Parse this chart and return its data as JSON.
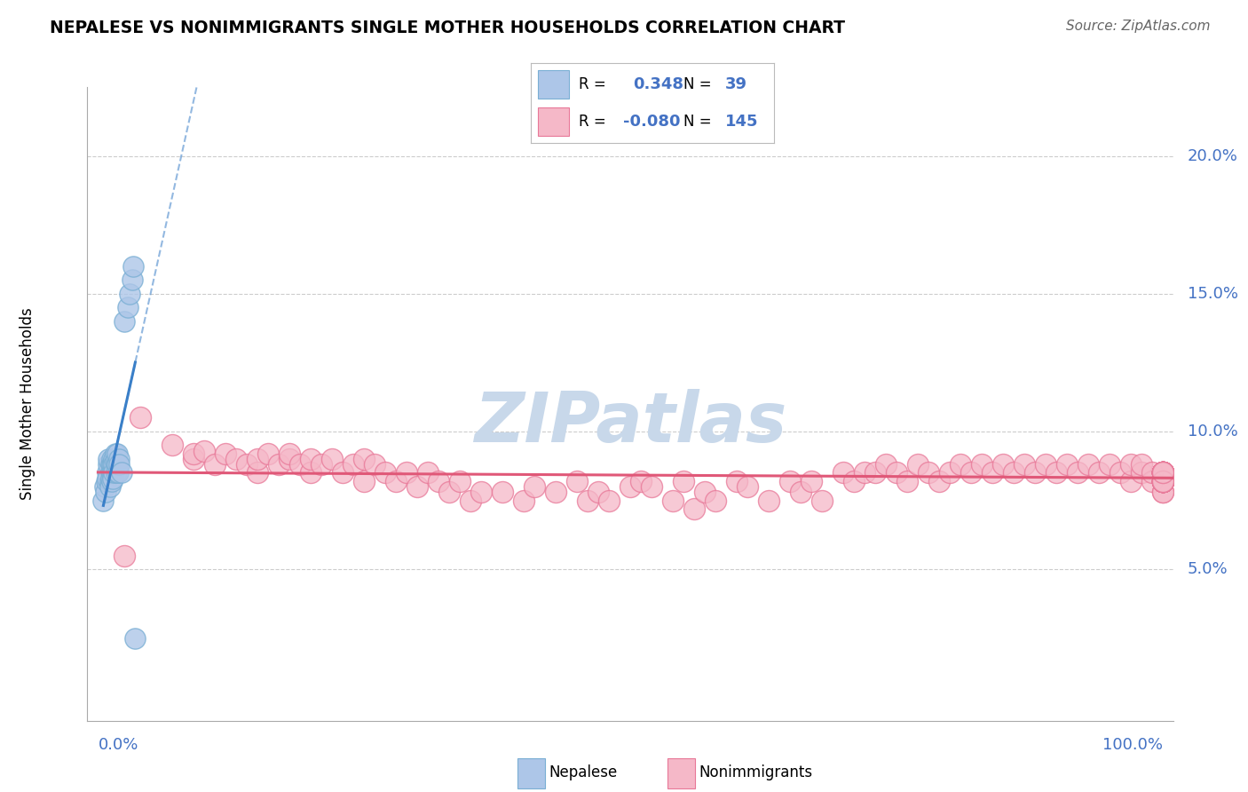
{
  "title": "NEPALESE VS NONIMMIGRANTS SINGLE MOTHER HOUSEHOLDS CORRELATION CHART",
  "source": "Source: ZipAtlas.com",
  "ylabel": "Single Mother Households",
  "legend_nepalese_R": "0.348",
  "legend_nepalese_N": "39",
  "legend_nonimmigrants_R": "-0.080",
  "legend_nonimmigrants_N": "145",
  "color_nepalese_fill": "#adc6e8",
  "color_nepalese_edge": "#7aafd4",
  "color_nonimmigrants_fill": "#f5b8c8",
  "color_nonimmigrants_edge": "#e87898",
  "color_nepalese_line": "#3a7fc8",
  "color_nonimmigrants_line": "#e05878",
  "color_axis_label": "#4472c4",
  "color_grid": "#cccccc",
  "watermark_text": "ZIPatlas",
  "watermark_color": "#c8d8ea",
  "xlim": [
    0.0,
    1.0
  ],
  "ylim": [
    0.0,
    0.22
  ],
  "yticks": [
    0.05,
    0.1,
    0.15,
    0.2
  ],
  "ytick_labels": [
    "5.0%",
    "10.0%",
    "15.0%",
    "20.0%"
  ],
  "nepalese_x": [
    0.005,
    0.006,
    0.007,
    0.008,
    0.009,
    0.009,
    0.01,
    0.01,
    0.011,
    0.011,
    0.012,
    0.012,
    0.012,
    0.013,
    0.013,
    0.013,
    0.013,
    0.014,
    0.014,
    0.014,
    0.015,
    0.015,
    0.015,
    0.016,
    0.016,
    0.017,
    0.017,
    0.018,
    0.018,
    0.019,
    0.02,
    0.02,
    0.022,
    0.025,
    0.028,
    0.03,
    0.032,
    0.033,
    0.035
  ],
  "nepalese_y": [
    0.075,
    0.08,
    0.078,
    0.082,
    0.085,
    0.083,
    0.088,
    0.09,
    0.082,
    0.08,
    0.085,
    0.088,
    0.083,
    0.09,
    0.088,
    0.085,
    0.082,
    0.088,
    0.085,
    0.083,
    0.09,
    0.088,
    0.085,
    0.092,
    0.089,
    0.088,
    0.085,
    0.092,
    0.088,
    0.085,
    0.09,
    0.088,
    0.085,
    0.14,
    0.145,
    0.15,
    0.155,
    0.16,
    0.025
  ],
  "nonimmigrants_x": [
    0.025,
    0.04,
    0.07,
    0.09,
    0.09,
    0.1,
    0.11,
    0.12,
    0.13,
    0.14,
    0.15,
    0.15,
    0.16,
    0.17,
    0.18,
    0.18,
    0.19,
    0.2,
    0.2,
    0.21,
    0.22,
    0.23,
    0.24,
    0.25,
    0.25,
    0.26,
    0.27,
    0.28,
    0.29,
    0.3,
    0.31,
    0.32,
    0.33,
    0.34,
    0.35,
    0.36,
    0.38,
    0.4,
    0.41,
    0.43,
    0.45,
    0.46,
    0.47,
    0.48,
    0.5,
    0.51,
    0.52,
    0.54,
    0.55,
    0.56,
    0.57,
    0.58,
    0.6,
    0.61,
    0.63,
    0.65,
    0.66,
    0.67,
    0.68,
    0.7,
    0.71,
    0.72,
    0.73,
    0.74,
    0.75,
    0.76,
    0.77,
    0.78,
    0.79,
    0.8,
    0.81,
    0.82,
    0.83,
    0.84,
    0.85,
    0.86,
    0.87,
    0.88,
    0.89,
    0.9,
    0.91,
    0.92,
    0.93,
    0.94,
    0.95,
    0.96,
    0.97,
    0.97,
    0.98,
    0.98,
    0.99,
    0.99,
    1.0,
    1.0,
    1.0,
    1.0,
    1.0,
    1.0,
    1.0,
    1.0,
    1.0,
    1.0,
    1.0,
    1.0,
    1.0,
    1.0,
    1.0,
    1.0,
    1.0,
    1.0,
    1.0,
    1.0,
    1.0,
    1.0,
    1.0,
    1.0,
    1.0,
    1.0,
    1.0,
    1.0,
    1.0,
    1.0,
    1.0,
    1.0,
    1.0,
    1.0,
    1.0,
    1.0,
    1.0,
    1.0,
    1.0,
    1.0,
    1.0,
    1.0,
    1.0,
    1.0,
    1.0,
    1.0,
    1.0,
    1.0,
    1.0,
    1.0
  ],
  "nonimmigrants_y": [
    0.055,
    0.105,
    0.095,
    0.09,
    0.092,
    0.093,
    0.088,
    0.092,
    0.09,
    0.088,
    0.085,
    0.09,
    0.092,
    0.088,
    0.09,
    0.092,
    0.088,
    0.085,
    0.09,
    0.088,
    0.09,
    0.085,
    0.088,
    0.082,
    0.09,
    0.088,
    0.085,
    0.082,
    0.085,
    0.08,
    0.085,
    0.082,
    0.078,
    0.082,
    0.075,
    0.078,
    0.078,
    0.075,
    0.08,
    0.078,
    0.082,
    0.075,
    0.078,
    0.075,
    0.08,
    0.082,
    0.08,
    0.075,
    0.082,
    0.072,
    0.078,
    0.075,
    0.082,
    0.08,
    0.075,
    0.082,
    0.078,
    0.082,
    0.075,
    0.085,
    0.082,
    0.085,
    0.085,
    0.088,
    0.085,
    0.082,
    0.088,
    0.085,
    0.082,
    0.085,
    0.088,
    0.085,
    0.088,
    0.085,
    0.088,
    0.085,
    0.088,
    0.085,
    0.088,
    0.085,
    0.088,
    0.085,
    0.088,
    0.085,
    0.088,
    0.085,
    0.082,
    0.088,
    0.085,
    0.088,
    0.082,
    0.085,
    0.082,
    0.085,
    0.082,
    0.085,
    0.082,
    0.085,
    0.082,
    0.085,
    0.082,
    0.078,
    0.082,
    0.085,
    0.082,
    0.078,
    0.082,
    0.085,
    0.082,
    0.085,
    0.082,
    0.085,
    0.082,
    0.085,
    0.082,
    0.085,
    0.082,
    0.085,
    0.082,
    0.085,
    0.082,
    0.085,
    0.082,
    0.085,
    0.082,
    0.085,
    0.082,
    0.085,
    0.082,
    0.085,
    0.082,
    0.085,
    0.082,
    0.085,
    0.082,
    0.085,
    0.082,
    0.085,
    0.082,
    0.085,
    0.082,
    0.085
  ]
}
